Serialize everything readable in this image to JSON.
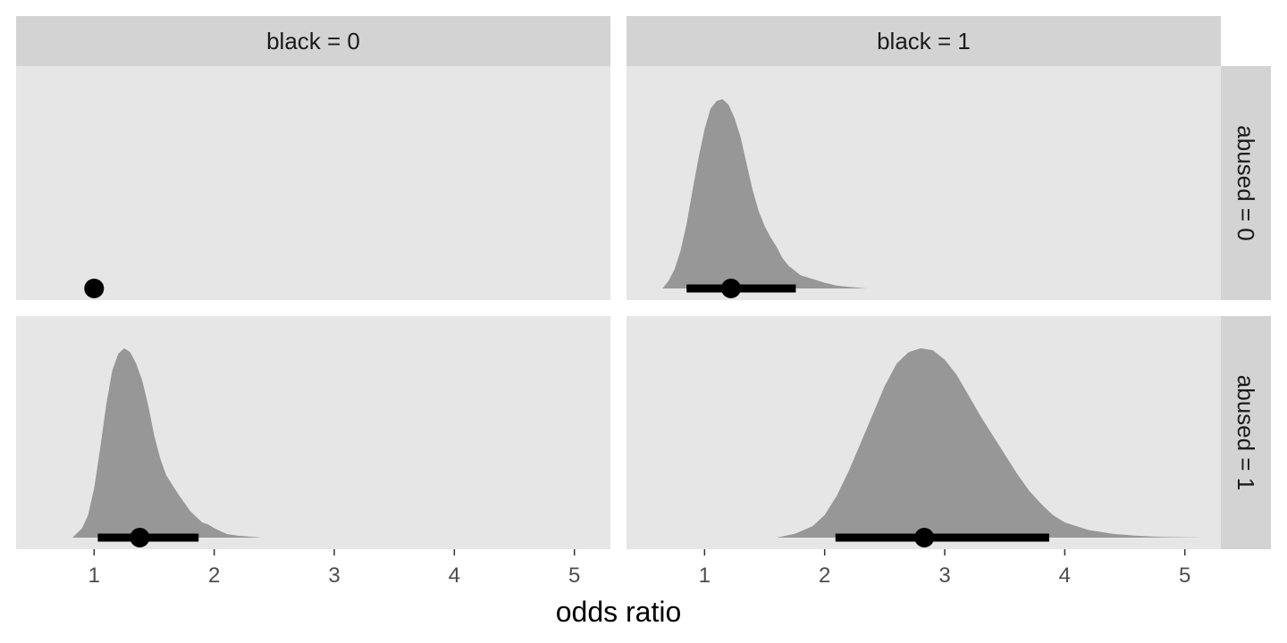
{
  "chart_data": {
    "type": "area",
    "description_type": "faceted halfeye (density + point interval)",
    "xlabel": "odds ratio",
    "ylabel": "",
    "xlim": [
      0.35,
      5.3
    ],
    "x_ticks": [
      1,
      2,
      3,
      4,
      5
    ],
    "x_tick_labels": [
      "1",
      "2",
      "3",
      "4",
      "5"
    ],
    "grid": false,
    "column_facet_labels": [
      "black = 0",
      "black = 1"
    ],
    "row_facet_labels": [
      "abused = 0",
      "abused = 1"
    ],
    "colors": {
      "density": "#979797",
      "panel": "#e6e6e6",
      "strip": "#d3d3d3",
      "interval": "#000000"
    },
    "panels": [
      {
        "col": 0,
        "row": 0,
        "density": [],
        "point": 1.0,
        "interval": null
      },
      {
        "col": 1,
        "row": 0,
        "density": [
          [
            0.65,
            0.0
          ],
          [
            0.7,
            0.04
          ],
          [
            0.75,
            0.1
          ],
          [
            0.8,
            0.2
          ],
          [
            0.85,
            0.34
          ],
          [
            0.9,
            0.52
          ],
          [
            0.95,
            0.69
          ],
          [
            1.0,
            0.84
          ],
          [
            1.05,
            0.95
          ],
          [
            1.1,
            0.99
          ],
          [
            1.15,
            1.0
          ],
          [
            1.2,
            0.97
          ],
          [
            1.25,
            0.9
          ],
          [
            1.3,
            0.8
          ],
          [
            1.35,
            0.66
          ],
          [
            1.4,
            0.52
          ],
          [
            1.45,
            0.41
          ],
          [
            1.5,
            0.33
          ],
          [
            1.55,
            0.27
          ],
          [
            1.6,
            0.22
          ],
          [
            1.65,
            0.16
          ],
          [
            1.7,
            0.12
          ],
          [
            1.8,
            0.07
          ],
          [
            1.9,
            0.05
          ],
          [
            2.0,
            0.03
          ],
          [
            2.1,
            0.015
          ],
          [
            2.2,
            0.008
          ],
          [
            2.35,
            0.0
          ]
        ],
        "point": 1.22,
        "interval": [
          0.85,
          1.76
        ]
      },
      {
        "col": 0,
        "row": 1,
        "density": [
          [
            0.82,
            0.0
          ],
          [
            0.9,
            0.05
          ],
          [
            0.95,
            0.12
          ],
          [
            1.0,
            0.26
          ],
          [
            1.05,
            0.47
          ],
          [
            1.1,
            0.7
          ],
          [
            1.15,
            0.88
          ],
          [
            1.2,
            0.97
          ],
          [
            1.25,
            1.0
          ],
          [
            1.3,
            0.98
          ],
          [
            1.35,
            0.92
          ],
          [
            1.4,
            0.83
          ],
          [
            1.45,
            0.7
          ],
          [
            1.5,
            0.54
          ],
          [
            1.55,
            0.42
          ],
          [
            1.6,
            0.33
          ],
          [
            1.7,
            0.23
          ],
          [
            1.8,
            0.14
          ],
          [
            1.9,
            0.08
          ],
          [
            1.95,
            0.07
          ],
          [
            2.0,
            0.05
          ],
          [
            2.1,
            0.02
          ],
          [
            2.2,
            0.01
          ],
          [
            2.4,
            0.0
          ]
        ],
        "point": 1.38,
        "interval": [
          1.03,
          1.87
        ]
      },
      {
        "col": 1,
        "row": 1,
        "density": [
          [
            1.6,
            0.0
          ],
          [
            1.75,
            0.02
          ],
          [
            1.9,
            0.06
          ],
          [
            2.0,
            0.12
          ],
          [
            2.1,
            0.22
          ],
          [
            2.2,
            0.35
          ],
          [
            2.3,
            0.5
          ],
          [
            2.4,
            0.65
          ],
          [
            2.5,
            0.8
          ],
          [
            2.6,
            0.92
          ],
          [
            2.7,
            0.98
          ],
          [
            2.8,
            1.0
          ],
          [
            2.9,
            0.99
          ],
          [
            3.0,
            0.94
          ],
          [
            3.1,
            0.86
          ],
          [
            3.2,
            0.75
          ],
          [
            3.3,
            0.64
          ],
          [
            3.4,
            0.54
          ],
          [
            3.5,
            0.44
          ],
          [
            3.6,
            0.34
          ],
          [
            3.7,
            0.25
          ],
          [
            3.8,
            0.18
          ],
          [
            3.9,
            0.12
          ],
          [
            4.0,
            0.08
          ],
          [
            4.2,
            0.04
          ],
          [
            4.4,
            0.02
          ],
          [
            4.6,
            0.01
          ],
          [
            4.8,
            0.004
          ],
          [
            5.15,
            0.0
          ]
        ],
        "point": 2.83,
        "interval": [
          2.09,
          3.87
        ]
      }
    ]
  }
}
